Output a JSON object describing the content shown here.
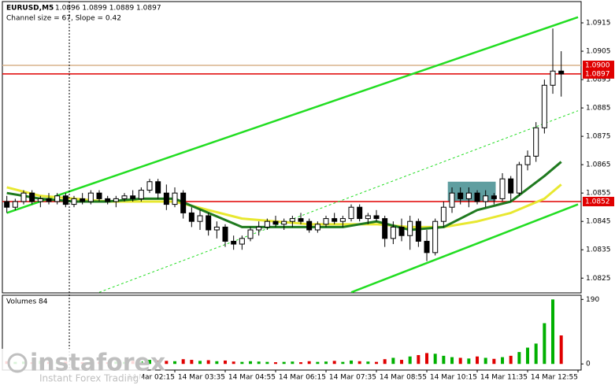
{
  "chart_data": {
    "type": "candlestick",
    "title": "EURUSD,M5",
    "subtitle": "1.0896 1.0899 1.0889 1.0897",
    "annotation": "Channel size = 67, Slope = 0.42",
    "categories": [
      null,
      null,
      null,
      null,
      null,
      null,
      null,
      null,
      null,
      null,
      null,
      null,
      null,
      null,
      null,
      null,
      null,
      null,
      null,
      null,
      "14 Mar 02:15",
      null,
      null,
      null,
      null,
      null,
      "14 Mar 03:35",
      null,
      null,
      null,
      null,
      null,
      "14 Mar 04:55",
      null,
      null,
      null,
      null,
      null,
      "14 Mar 06:15",
      null,
      null,
      null,
      null,
      null,
      "14 Mar 07:35",
      null,
      null,
      null,
      null,
      null,
      "14 Mar 08:55",
      null,
      null,
      null,
      null,
      null,
      "14 Mar 10:15",
      null,
      null,
      null,
      null,
      null,
      "14 Mar 11:35",
      null,
      null,
      null,
      null,
      null,
      "14 Mar 12:55"
    ],
    "ohlc": [
      [
        1.0852,
        1.0854,
        1.0848,
        1.085
      ],
      [
        1.085,
        1.0853,
        1.0849,
        1.0852
      ],
      [
        1.0852,
        1.0856,
        1.0851,
        1.0855
      ],
      [
        1.0855,
        1.0856,
        1.0851,
        1.0852
      ],
      [
        1.0852,
        1.0854,
        1.085,
        1.0853
      ],
      [
        1.0853,
        1.0855,
        1.0851,
        1.0852
      ],
      [
        1.0852,
        1.0855,
        1.0851,
        1.0854
      ],
      [
        1.0854,
        1.0855,
        1.085,
        1.0851
      ],
      [
        1.0851,
        1.0854,
        1.085,
        1.0853
      ],
      [
        1.0853,
        1.0855,
        1.0851,
        1.0852
      ],
      [
        1.0852,
        1.0856,
        1.0851,
        1.0855
      ],
      [
        1.0855,
        1.0856,
        1.0852,
        1.0853
      ],
      [
        1.0853,
        1.0854,
        1.0851,
        1.0852
      ],
      [
        1.0852,
        1.0854,
        1.085,
        1.0853
      ],
      [
        1.0853,
        1.0855,
        1.0852,
        1.0854
      ],
      [
        1.0854,
        1.0856,
        1.0852,
        1.0853
      ],
      [
        1.0853,
        1.0857,
        1.0852,
        1.0856
      ],
      [
        1.0856,
        1.086,
        1.0855,
        1.0859
      ],
      [
        1.0859,
        1.086,
        1.0853,
        1.0855
      ],
      [
        1.0855,
        1.0858,
        1.0849,
        1.0851
      ],
      [
        1.0851,
        1.0857,
        1.085,
        1.0855
      ],
      [
        1.0855,
        1.0856,
        1.0846,
        1.0848
      ],
      [
        1.0848,
        1.085,
        1.0843,
        1.0845
      ],
      [
        1.0845,
        1.0849,
        1.0842,
        1.0847
      ],
      [
        1.0847,
        1.0848,
        1.084,
        1.0842
      ],
      [
        1.0842,
        1.0845,
        1.0839,
        1.0843
      ],
      [
        1.0843,
        1.0844,
        1.0836,
        1.0838
      ],
      [
        1.0838,
        1.084,
        1.0835,
        1.0837
      ],
      [
        1.0837,
        1.084,
        1.0835,
        1.0839
      ],
      [
        1.0839,
        1.0843,
        1.0838,
        1.0842
      ],
      [
        1.0842,
        1.0845,
        1.084,
        1.0843
      ],
      [
        1.0843,
        1.0846,
        1.0842,
        1.0845
      ],
      [
        1.0845,
        1.0847,
        1.0843,
        1.0844
      ],
      [
        1.0844,
        1.0846,
        1.0842,
        1.0845
      ],
      [
        1.0845,
        1.0847,
        1.0843,
        1.0846
      ],
      [
        1.0846,
        1.0848,
        1.0844,
        1.0845
      ],
      [
        1.0845,
        1.0846,
        1.0841,
        1.0842
      ],
      [
        1.0842,
        1.0845,
        1.0841,
        1.0844
      ],
      [
        1.0844,
        1.0847,
        1.0843,
        1.0846
      ],
      [
        1.0846,
        1.0848,
        1.0844,
        1.0845
      ],
      [
        1.0845,
        1.0847,
        1.0843,
        1.0846
      ],
      [
        1.0846,
        1.0851,
        1.0845,
        1.085
      ],
      [
        1.085,
        1.0851,
        1.0845,
        1.0846
      ],
      [
        1.0846,
        1.0848,
        1.0844,
        1.0847
      ],
      [
        1.0847,
        1.0849,
        1.0845,
        1.0846
      ],
      [
        1.0846,
        1.0847,
        1.0836,
        1.0839
      ],
      [
        1.0839,
        1.0845,
        1.0837,
        1.0843
      ],
      [
        1.0843,
        1.0846,
        1.0838,
        1.084
      ],
      [
        1.084,
        1.0847,
        1.0835,
        1.0845
      ],
      [
        1.0845,
        1.0846,
        1.0836,
        1.0838
      ],
      [
        1.0838,
        1.0842,
        1.0831,
        1.0834
      ],
      [
        1.0834,
        1.0846,
        1.0833,
        1.0845
      ],
      [
        1.0845,
        1.0852,
        1.0843,
        1.085
      ],
      [
        1.085,
        1.0857,
        1.0848,
        1.0855
      ],
      [
        1.0855,
        1.0857,
        1.0851,
        1.0853
      ],
      [
        1.0853,
        1.0857,
        1.085,
        1.0855
      ],
      [
        1.0855,
        1.0856,
        1.0851,
        1.0852
      ],
      [
        1.0852,
        1.0856,
        1.085,
        1.0854
      ],
      [
        1.0854,
        1.0855,
        1.0851,
        1.0853
      ],
      [
        1.0853,
        1.0862,
        1.0852,
        1.086
      ],
      [
        1.086,
        1.0861,
        1.0852,
        1.0855
      ],
      [
        1.0855,
        1.0866,
        1.0854,
        1.0865
      ],
      [
        1.0865,
        1.087,
        1.0863,
        1.0868
      ],
      [
        1.0868,
        1.088,
        1.0866,
        1.0878
      ],
      [
        1.0878,
        1.0895,
        1.0876,
        1.0893
      ],
      [
        1.0893,
        1.0913,
        1.089,
        1.0898
      ],
      [
        1.0898,
        1.0905,
        1.0889,
        1.0897
      ],
      null,
      null
    ],
    "ylim": [
      1.08198,
      1.09225
    ],
    "yticks": [
      1.0915,
      1.0905,
      1.0895,
      1.0885,
      1.0875,
      1.0865,
      1.0855,
      1.0845,
      1.0835,
      1.0825
    ],
    "up_color": "#ffffff",
    "down_color": "#000000",
    "moving_averages": [
      {
        "color": "#e8e830",
        "x": [
          0,
          4,
          8,
          12,
          16,
          20,
          24,
          28,
          32,
          36,
          40,
          44,
          48,
          52,
          56,
          60,
          64,
          66
        ],
        "values": [
          1.0857,
          1.0854,
          1.0853,
          1.0852,
          1.0852,
          1.0852,
          1.0849,
          1.0846,
          1.0845,
          1.0844,
          1.0844,
          1.0844,
          1.0843,
          1.0843,
          1.0845,
          1.0848,
          1.0853,
          1.0858
        ]
      },
      {
        "color": "#1f7a1f",
        "x": [
          0,
          4,
          8,
          12,
          16,
          20,
          24,
          28,
          32,
          36,
          40,
          44,
          48,
          52,
          56,
          60,
          64,
          66
        ],
        "values": [
          1.0855,
          1.0853,
          1.0852,
          1.0852,
          1.0853,
          1.0853,
          1.0848,
          1.0843,
          1.0843,
          1.0843,
          1.0843,
          1.0845,
          1.0842,
          1.0843,
          1.0849,
          1.0852,
          1.0861,
          1.0866
        ]
      }
    ],
    "trend_lines": [
      {
        "color": "#22dd22",
        "dashed": false,
        "x": [
          0,
          68
        ],
        "values": [
          1.0848,
          1.0917
        ]
      },
      {
        "color": "#22dd22",
        "dashed": false,
        "x": [
          41,
          68
        ],
        "values": [
          1.082,
          1.0851
        ]
      },
      {
        "color": "#22dd22",
        "dashed": true,
        "x": [
          11,
          68
        ],
        "values": [
          1.082,
          1.0884
        ]
      }
    ],
    "levels": [
      {
        "value": 1.09,
        "label": "1.0900",
        "color": "#d9b38c"
      },
      {
        "value": 1.0897,
        "color": "#e00000"
      },
      {
        "value": 1.0852,
        "color": "#e00000"
      }
    ],
    "zone": {
      "color": "#5f9ea0",
      "x": [
        52.5,
        58.2
      ],
      "values": [
        1.0852,
        1.0859
      ]
    },
    "volume": {
      "title": "Volumes 84",
      "values": [
        8,
        6,
        7,
        5,
        9,
        6,
        5,
        7,
        6,
        5,
        8,
        6,
        5,
        7,
        6,
        9,
        8,
        12,
        10,
        9,
        8,
        14,
        12,
        9,
        11,
        8,
        10,
        7,
        6,
        8,
        7,
        6,
        5,
        6,
        7,
        5,
        8,
        6,
        7,
        9,
        6,
        10,
        8,
        7,
        6,
        14,
        18,
        12,
        22,
        26,
        32,
        30,
        24,
        20,
        18,
        16,
        22,
        18,
        15,
        20,
        24,
        35,
        48,
        60,
        120,
        190,
        84,
        null,
        null
      ],
      "ylim": [
        -18,
        200
      ],
      "yticks": [
        190,
        0
      ],
      "up_color": "#00b000",
      "down_color": "#e00000"
    }
  },
  "watermark": {
    "brand": "instaforex",
    "tagline": "Instant Forex Trading"
  }
}
